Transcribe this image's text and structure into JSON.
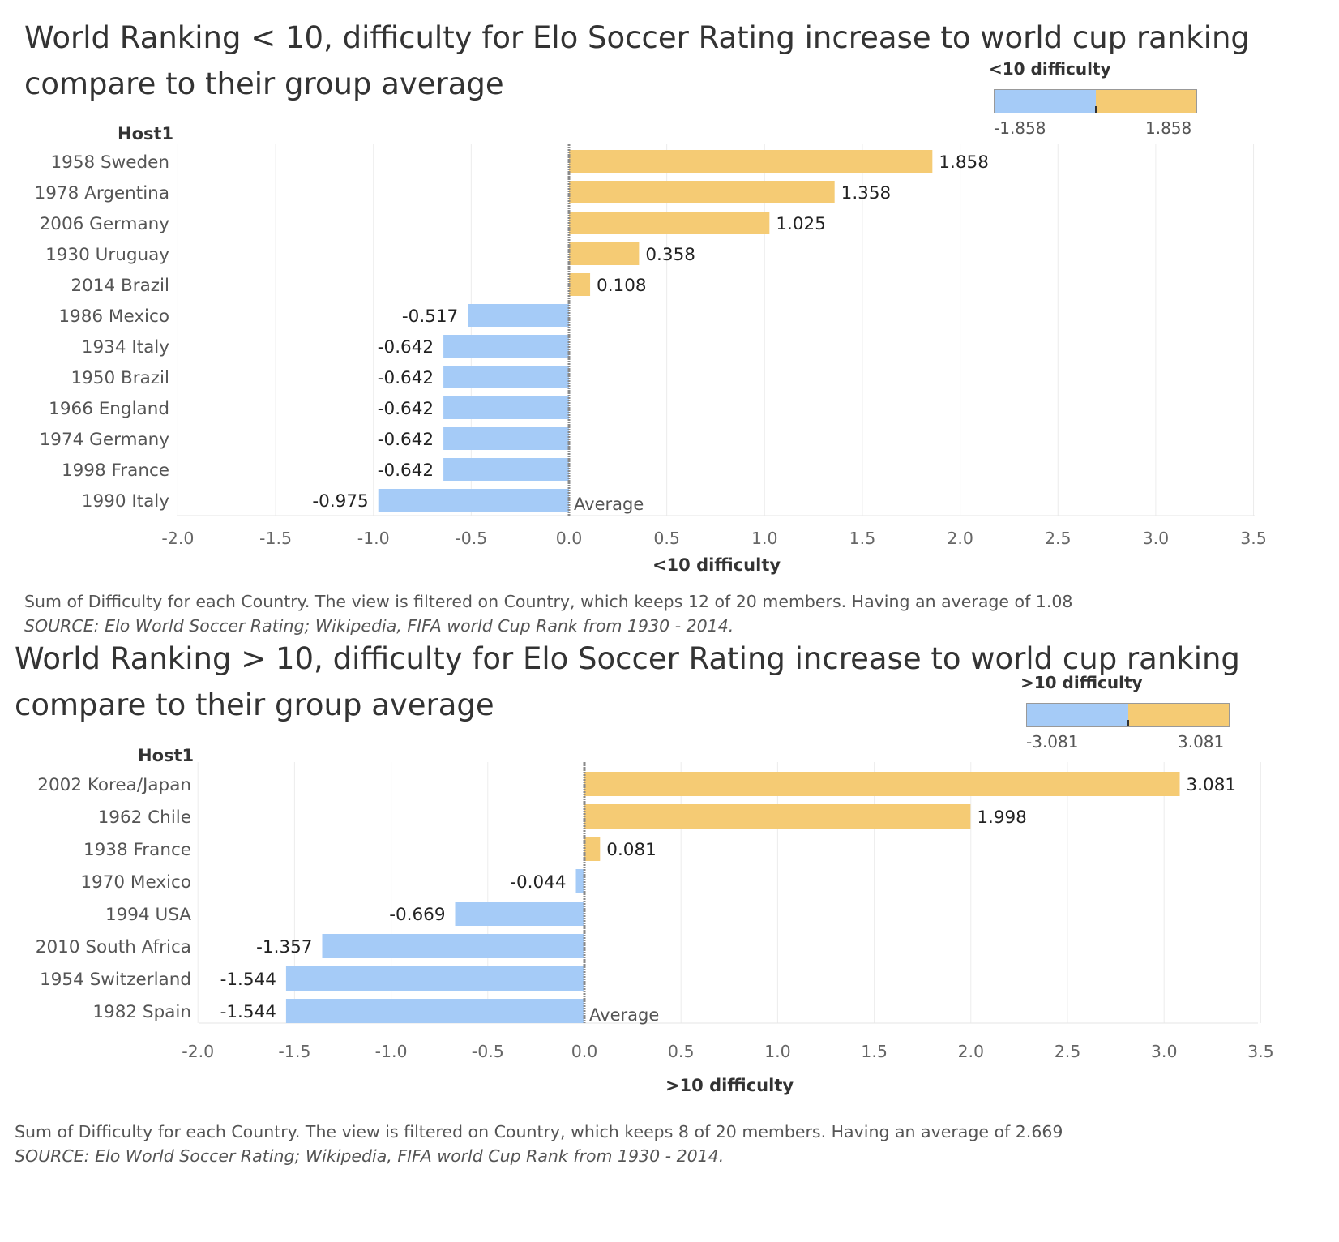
{
  "chart_data": [
    {
      "type": "bar",
      "orientation": "horizontal",
      "title": "World Ranking < 10, difficulty for Elo Soccer Rating increase to world cup ranking compare to their group average",
      "row_header": "Host1",
      "categories": [
        "1958 Sweden",
        "1978 Argentina",
        "2006 Germany",
        "1930 Uruguay",
        "2014 Brazil",
        "1986 Mexico",
        "1934 Italy",
        "1950 Brazil",
        "1966 England",
        "1974 Germany",
        "1998 France",
        "1990 Italy"
      ],
      "values": [
        1.858,
        1.358,
        1.025,
        0.358,
        0.108,
        -0.517,
        -0.642,
        -0.642,
        -0.642,
        -0.642,
        -0.642,
        -0.975
      ],
      "value_labels": [
        "1.858",
        "1.358",
        "1.025",
        "0.358",
        "0.108",
        "-0.517",
        "-0.642",
        "-0.642",
        "-0.642",
        "-0.642",
        "-0.642",
        "-0.975"
      ],
      "xlabel": "<10 difficulty",
      "xlim": [
        -2.0,
        3.5
      ],
      "xticks": [
        -2.0,
        -1.5,
        -1.0,
        -0.5,
        0.0,
        0.5,
        1.0,
        1.5,
        2.0,
        2.5,
        3.0,
        3.5
      ],
      "xtick_labels": [
        "-2.0",
        "-1.5",
        "-1.0",
        "-0.5",
        "0.0",
        "0.5",
        "1.0",
        "1.5",
        "2.0",
        "2.5",
        "3.0",
        "3.5"
      ],
      "reference_line": {
        "value": 0,
        "label": "Average"
      },
      "grid": true,
      "legend": {
        "title": "<10 difficulty",
        "min_label": "-1.858",
        "max_label": "1.858",
        "placement": "top-right"
      },
      "colors": {
        "negative": "#a5cbf7",
        "positive": "#f5cb74"
      },
      "footnote": "Sum of Difficulty for each Country. The view is filtered on Country, which keeps 12 of 20 members. Having an average of 1.08",
      "source": "SOURCE: Elo World Soccer Rating; Wikipedia, FIFA world Cup Rank from 1930 - 2014."
    },
    {
      "type": "bar",
      "orientation": "horizontal",
      "title": "World Ranking > 10, difficulty for Elo Soccer Rating increase to world cup ranking compare to their group average",
      "row_header": "Host1",
      "categories": [
        "2002 Korea/Japan",
        "1962 Chile",
        "1938 France",
        "1970 Mexico",
        "1994 USA",
        "2010 South Africa",
        "1954 Switzerland",
        "1982 Spain"
      ],
      "values": [
        3.081,
        1.998,
        0.081,
        -0.044,
        -0.669,
        -1.357,
        -1.544,
        -1.544
      ],
      "value_labels": [
        "3.081",
        "1.998",
        "0.081",
        "-0.044",
        "-0.669",
        "-1.357",
        "-1.544",
        "-1.544"
      ],
      "xlabel": ">10 difficulty",
      "xlim": [
        -2.0,
        3.5
      ],
      "xticks": [
        -2.0,
        -1.5,
        -1.0,
        -0.5,
        0.0,
        0.5,
        1.0,
        1.5,
        2.0,
        2.5,
        3.0,
        3.5
      ],
      "xtick_labels": [
        "-2.0",
        "-1.5",
        "-1.0",
        "-0.5",
        "0.0",
        "0.5",
        "1.0",
        "1.5",
        "2.0",
        "2.5",
        "3.0",
        "3.5"
      ],
      "reference_line": {
        "value": 0,
        "label": "Average"
      },
      "grid": true,
      "legend": {
        "title": ">10 difficulty",
        "min_label": "-3.081",
        "max_label": "3.081",
        "placement": "top-right"
      },
      "colors": {
        "negative": "#a5cbf7",
        "positive": "#f5cb74"
      },
      "footnote": "Sum of Difficulty for each Country. The view is filtered on Country, which keeps 8 of 20 members. Having an average of  2.669",
      "source": "SOURCE: Elo World Soccer Rating; Wikipedia, FIFA world Cup Rank from 1930 - 2014."
    }
  ]
}
